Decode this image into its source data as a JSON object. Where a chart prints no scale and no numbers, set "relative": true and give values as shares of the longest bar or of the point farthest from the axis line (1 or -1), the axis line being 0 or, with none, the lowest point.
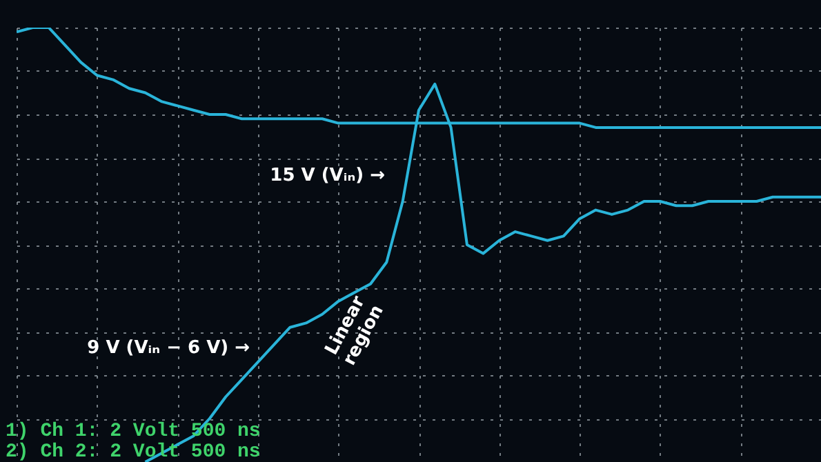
{
  "chart_data": {
    "type": "line",
    "relative": true,
    "grid": true,
    "categories": [
      null,
      null,
      null,
      null,
      null,
      null,
      null,
      null,
      null,
      null,
      null,
      null,
      null,
      null,
      null,
      null,
      null,
      null,
      null,
      null,
      null,
      null,
      null,
      null,
      null,
      null,
      null,
      null,
      null,
      null,
      null,
      null,
      null,
      null,
      null,
      null,
      null,
      null,
      null,
      null,
      null,
      null,
      null,
      null,
      null,
      null,
      null,
      null,
      null,
      null,
      null
    ],
    "series": [
      {
        "color": "#2ab4d9",
        "values": [
          0.99,
          1.0,
          1.0,
          0.96,
          0.92,
          0.89,
          0.88,
          0.86,
          0.85,
          0.83,
          0.82,
          0.81,
          0.8,
          0.8,
          0.79,
          0.79,
          0.79,
          0.79,
          0.79,
          0.79,
          0.78,
          0.78,
          0.78,
          0.78,
          0.78,
          0.78,
          0.78,
          0.78,
          0.78,
          0.78,
          0.78,
          0.78,
          0.78,
          0.78,
          0.78,
          0.78,
          0.77,
          0.77,
          0.77,
          0.77,
          0.77,
          0.77,
          0.77,
          0.77,
          0.77,
          0.77,
          0.77,
          0.77,
          0.77,
          0.77,
          0.77
        ]
      },
      {
        "color": "#2ab4d9",
        "values": [
          null,
          null,
          null,
          null,
          null,
          null,
          null,
          null,
          0.0,
          0.02,
          0.04,
          0.06,
          0.1,
          0.15,
          0.19,
          0.23,
          0.27,
          0.31,
          0.32,
          0.34,
          0.37,
          0.39,
          0.41,
          0.46,
          0.6,
          0.81,
          0.87,
          0.77,
          0.5,
          0.48,
          0.51,
          0.53,
          0.52,
          0.51,
          0.52,
          0.56,
          0.58,
          0.57,
          0.58,
          0.6,
          0.6,
          0.59,
          0.59,
          0.6,
          0.6,
          0.6,
          0.6,
          0.61,
          0.61,
          0.61,
          0.61
        ]
      }
    ],
    "annotations": [
      "15 V (Vᵢₙ) →",
      "9 V (Vᵢₙ − 6 V) →",
      "Linear region",
      "1) Ch 1:   2 Volt  500 ns",
      "2) Ch 2:   2 Volt  500 ns"
    ]
  }
}
